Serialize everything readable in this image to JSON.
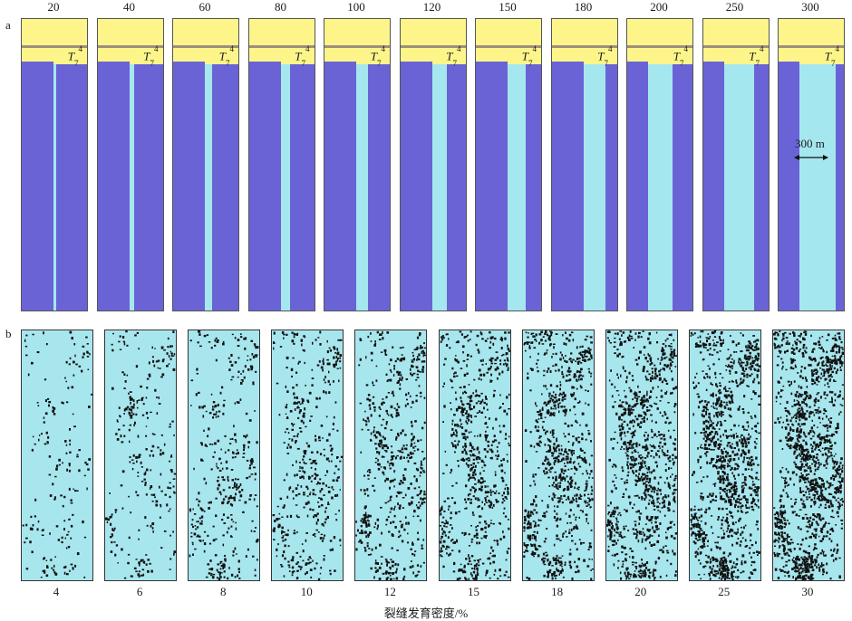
{
  "row_a_letter": "a",
  "row_b_letter": "b",
  "row_a": {
    "top_labels": [
      "20",
      "40",
      "60",
      "80",
      "100",
      "120",
      "150",
      "180",
      "200",
      "250",
      "300"
    ],
    "horizon_label": {
      "letter": "T",
      "sub": "7",
      "sup": "4"
    },
    "scale_bar_label": "300 m",
    "colors": {
      "cap": "#fdf58a",
      "body": "#6a63d6",
      "fracture": "#a5e7ef"
    }
  },
  "row_b": {
    "bottom_labels": [
      "4",
      "6",
      "8",
      "10",
      "12",
      "15",
      "18",
      "20",
      "25",
      "30"
    ],
    "density_percent": [
      4,
      6,
      8,
      10,
      12,
      15,
      18,
      20,
      25,
      30
    ],
    "axis_label": "裂缝发育密度/%",
    "colors": {
      "background": "#a8e6ee",
      "fracture": "#111111"
    }
  }
}
